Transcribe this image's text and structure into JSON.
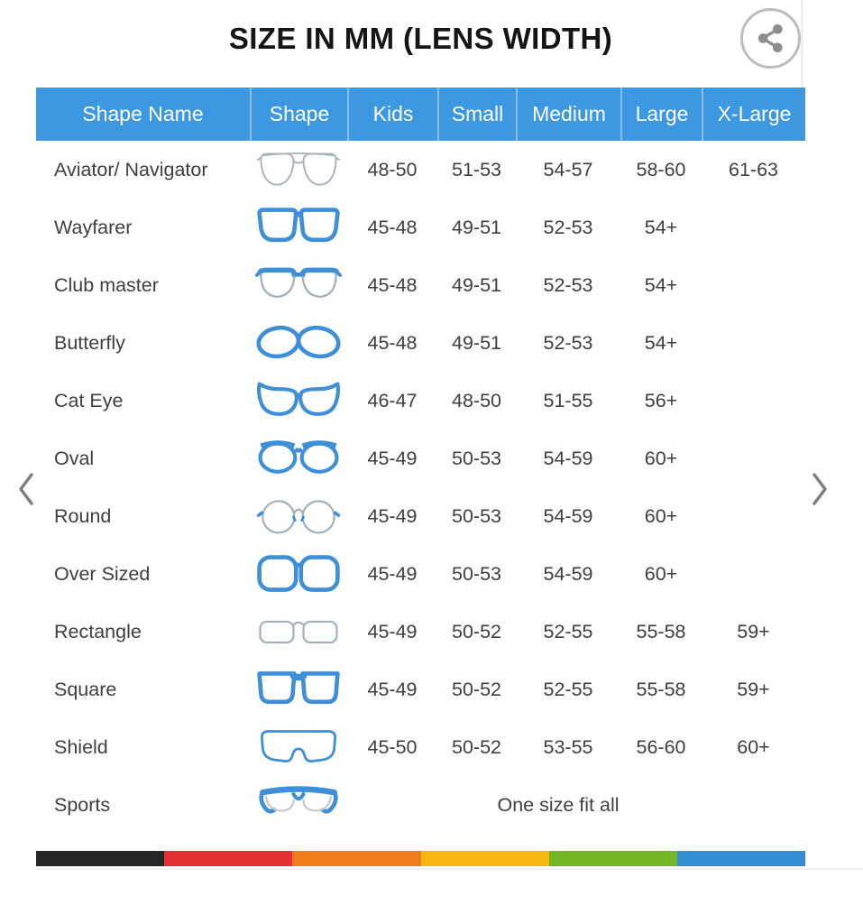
{
  "title": "SIZE IN MM (LENS WIDTH)",
  "toolbar": {
    "share_icon": "share-icon"
  },
  "carousel": {
    "prev_icon": "chevron-left-icon",
    "next_icon": "chevron-right-icon"
  },
  "table": {
    "columns": [
      "Shape Name",
      "Shape",
      "Kids",
      "Small",
      "Medium",
      "Large",
      "X-Large"
    ],
    "rows": [
      {
        "name": "Aviator/ Navigator",
        "icon": "aviator-glasses-icon",
        "sizes": [
          "48-50",
          "51-53",
          "54-57",
          "58-60",
          "61-63"
        ]
      },
      {
        "name": "Wayfarer",
        "icon": "wayfarer-glasses-icon",
        "sizes": [
          "45-48",
          "49-51",
          "52-53",
          "54+",
          ""
        ]
      },
      {
        "name": "Club master",
        "icon": "clubmaster-glasses-icon",
        "sizes": [
          "45-48",
          "49-51",
          "52-53",
          "54+",
          ""
        ]
      },
      {
        "name": "Butterfly",
        "icon": "butterfly-glasses-icon",
        "sizes": [
          "45-48",
          "49-51",
          "52-53",
          "54+",
          ""
        ]
      },
      {
        "name": "Cat Eye",
        "icon": "cat-eye-glasses-icon",
        "sizes": [
          "46-47",
          "48-50",
          "51-55",
          "56+",
          ""
        ]
      },
      {
        "name": "Oval",
        "icon": "oval-glasses-icon",
        "sizes": [
          "45-49",
          "50-53",
          "54-59",
          "60+",
          ""
        ]
      },
      {
        "name": "Round",
        "icon": "round-glasses-icon",
        "sizes": [
          "45-49",
          "50-53",
          "54-59",
          "60+",
          ""
        ]
      },
      {
        "name": "Over Sized",
        "icon": "oversized-glasses-icon",
        "sizes": [
          "45-49",
          "50-53",
          "54-59",
          "60+",
          ""
        ]
      },
      {
        "name": "Rectangle",
        "icon": "rectangle-glasses-icon",
        "sizes": [
          "45-49",
          "50-52",
          "52-55",
          "55-58",
          "59+"
        ]
      },
      {
        "name": "Square",
        "icon": "square-glasses-icon",
        "sizes": [
          "45-49",
          "50-52",
          "52-55",
          "55-58",
          "59+"
        ]
      },
      {
        "name": "Shield",
        "icon": "shield-glasses-icon",
        "sizes": [
          "45-50",
          "50-52",
          "53-55",
          "56-60",
          "60+"
        ]
      },
      {
        "name": "Sports",
        "icon": "sports-glasses-icon",
        "note": "One size fit all"
      }
    ]
  },
  "colors": {
    "header_bg": "#3d98e2",
    "header_text": "#ffffff",
    "frame_blue": "#3e8fd8",
    "frame_gray": "#a4b1ba",
    "body_text": "#3d3f42"
  },
  "footer_bar": {
    "segments": [
      "#262626",
      "#e53034",
      "#ee7c1b",
      "#f9b811",
      "#74b626",
      "#338fd3"
    ]
  }
}
